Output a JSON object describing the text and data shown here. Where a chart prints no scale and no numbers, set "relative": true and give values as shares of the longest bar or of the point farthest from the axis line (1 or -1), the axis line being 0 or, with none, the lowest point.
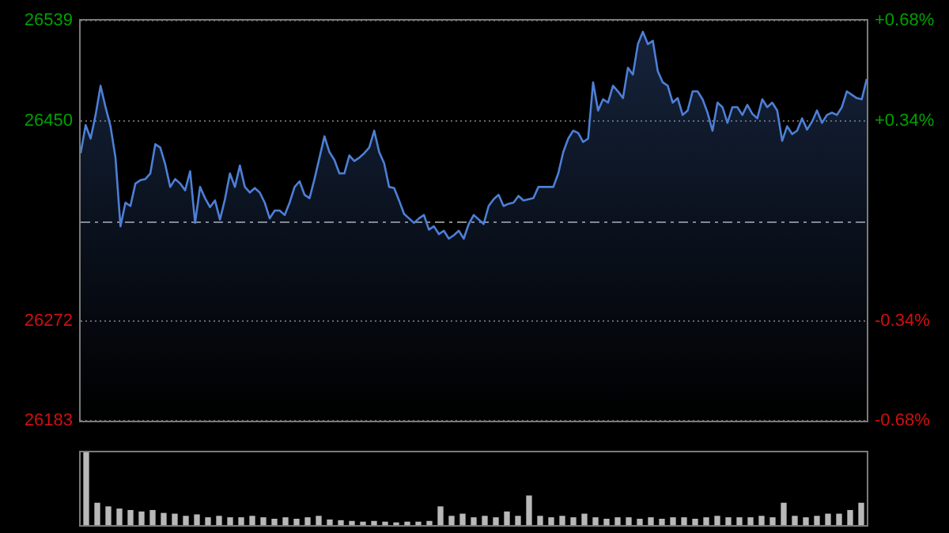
{
  "chart_data": [
    {
      "type": "area",
      "categories": [
        null,
        null,
        null,
        null,
        null,
        null,
        null,
        null,
        null,
        null,
        null,
        null,
        null,
        null,
        null,
        null,
        null,
        null,
        null,
        null,
        null,
        null,
        null,
        null,
        null,
        null,
        null,
        null,
        null,
        null,
        null,
        null,
        null,
        null,
        null,
        null,
        null,
        null,
        null,
        null,
        null,
        null,
        null,
        null,
        null,
        null,
        null,
        null,
        null,
        null,
        null,
        null,
        null,
        null,
        null,
        null,
        null,
        null,
        null,
        null,
        null,
        null,
        null,
        null,
        null,
        null,
        null,
        null,
        null,
        null,
        null,
        null,
        null,
        null,
        null,
        null,
        null,
        null,
        null,
        null,
        null,
        null,
        null,
        null,
        null,
        null,
        null,
        null,
        null,
        null,
        null,
        null,
        null,
        null,
        null,
        null,
        null,
        null,
        null,
        null,
        null,
        null,
        null,
        null,
        null,
        null,
        null,
        null,
        null,
        null,
        null,
        null,
        null,
        null,
        null,
        null,
        null,
        null,
        null,
        null,
        null,
        null,
        null,
        null,
        null,
        null,
        null,
        null,
        null,
        null,
        null,
        null,
        null,
        null,
        null,
        null,
        null,
        null,
        null,
        null,
        null,
        null,
        null,
        null,
        null,
        null,
        null,
        null,
        null,
        null,
        null,
        null,
        null,
        null,
        null,
        null,
        null,
        null,
        null
      ],
      "series": [
        {
          "color": "#4d7fd6",
          "values": [
            26421,
            26446,
            26434,
            26455,
            26481,
            26462,
            26445,
            26417,
            26356,
            26377,
            26374,
            26394,
            26397,
            26398,
            26403,
            26429,
            26426,
            26411,
            26391,
            26398,
            26394,
            26388,
            26405,
            26359,
            26391,
            26381,
            26373,
            26379,
            26362,
            26380,
            26403,
            26391,
            26410,
            26391,
            26386,
            26390,
            26386,
            26377,
            26363,
            26370,
            26370,
            26366,
            26377,
            26391,
            26396,
            26384,
            26381,
            26398,
            26417,
            26436,
            26422,
            26415,
            26403,
            26403,
            26419,
            26414,
            26417,
            26421,
            26426,
            26441,
            26422,
            26412,
            26391,
            26390,
            26379,
            26367,
            26363,
            26359,
            26363,
            26366,
            26353,
            26356,
            26349,
            26352,
            26345,
            26348,
            26352,
            26345,
            26358,
            26366,
            26362,
            26358,
            26374,
            26380,
            26384,
            26374,
            26376,
            26377,
            26383,
            26379,
            26380,
            26381,
            26391,
            26391,
            26391,
            26391,
            26403,
            26422,
            26434,
            26441,
            26439,
            26431,
            26434,
            26484,
            26459,
            26469,
            26466,
            26481,
            26476,
            26470,
            26497,
            26491,
            26518,
            26529,
            26518,
            26521,
            26494,
            26484,
            26481,
            26466,
            26470,
            26455,
            26459,
            26476,
            26476,
            26469,
            26457,
            26441,
            26466,
            26462,
            26448,
            26462,
            26462,
            26455,
            26464,
            26456,
            26452,
            26469,
            26462,
            26466,
            26459,
            26432,
            26445,
            26438,
            26441,
            26452,
            26442,
            26449,
            26459,
            26448,
            26455,
            26457,
            26455,
            26462,
            26476,
            26473,
            26470,
            26469,
            26487
          ]
        }
      ],
      "ylim": [
        26183,
        26539
      ],
      "yticks": [
        26183,
        26272,
        26450,
        26539
      ],
      "y2lim": [
        -0.68,
        0.68
      ],
      "y2ticks": [
        {
          "value": -0.68,
          "label": "-0.68%"
        },
        {
          "value": -0.34,
          "label": "-0.34%"
        },
        {
          "value": 0.34,
          "label": "+0.34%"
        },
        {
          "value": 0.68,
          "label": "+0.68%"
        }
      ],
      "ref_lines": [
        {
          "axis": "y",
          "value": 26361,
          "color": "#8a8a8a",
          "line_style": "dashed"
        }
      ],
      "grid": "y"
    },
    {
      "type": "bar",
      "relative": true,
      "color": "#b8b8b8",
      "categories": [
        null,
        null,
        null,
        null,
        null,
        null,
        null,
        null,
        null,
        null,
        null,
        null,
        null,
        null,
        null,
        null,
        null,
        null,
        null,
        null,
        null,
        null,
        null,
        null,
        null,
        null,
        null,
        null,
        null,
        null,
        null,
        null,
        null,
        null,
        null,
        null,
        null,
        null,
        null,
        null,
        null,
        null,
        null,
        null,
        null,
        null,
        null,
        null,
        null,
        null,
        null,
        null,
        null,
        null,
        null,
        null,
        null,
        null,
        null,
        null,
        null,
        null,
        null,
        null,
        null,
        null,
        null,
        null,
        null,
        null,
        null
      ],
      "values": [
        1,
        0.3,
        0.25,
        0.22,
        0.2,
        0.18,
        0.2,
        0.16,
        0.15,
        0.12,
        0.14,
        0.1,
        0.12,
        0.1,
        0.1,
        0.12,
        0.1,
        0.08,
        0.1,
        0.08,
        0.1,
        0.12,
        0.07,
        0.06,
        0.05,
        0.04,
        0.05,
        0.04,
        0.03,
        0.04,
        0.04,
        0.05,
        0.25,
        0.12,
        0.15,
        0.1,
        0.12,
        0.1,
        0.18,
        0.12,
        0.4,
        0.12,
        0.1,
        0.12,
        0.1,
        0.15,
        0.1,
        0.08,
        0.1,
        0.1,
        0.08,
        0.1,
        0.08,
        0.1,
        0.1,
        0.08,
        0.1,
        0.12,
        0.1,
        0.1,
        0.1,
        0.12,
        0.1,
        0.3,
        0.12,
        0.1,
        0.12,
        0.15,
        0.15,
        0.2,
        0.3
      ]
    }
  ]
}
